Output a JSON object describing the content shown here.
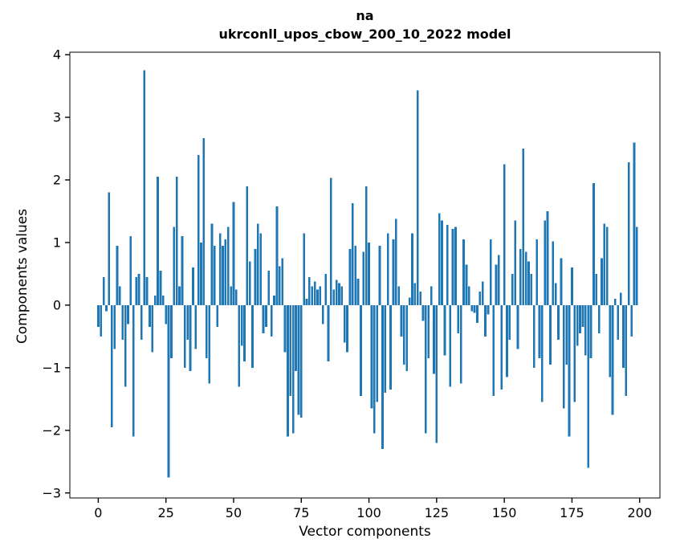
{
  "figure": {
    "title_line1": "na",
    "title_line2": "ukrconll_upos_cbow_200_10_2022 model"
  },
  "chart_data": {
    "type": "bar",
    "title": "na\nukrconll_upos_cbow_200_10_2022 model",
    "xlabel": "Vector components",
    "ylabel": "Components values",
    "x_note": "x value = component index (0..199)",
    "bar_color": "#1f77b4",
    "grid": false,
    "legend": "none",
    "xlim": [
      -10.5,
      207.5
    ],
    "ylim": [
      -3.08,
      4.04
    ],
    "x_ticks": [
      0,
      25,
      50,
      75,
      100,
      125,
      150,
      175,
      200
    ],
    "y_ticks": [
      -3,
      -2,
      -1,
      0,
      1,
      2,
      3,
      4
    ],
    "values": [
      -0.35,
      -0.5,
      0.45,
      -0.1,
      1.8,
      -1.95,
      -0.7,
      0.95,
      0.3,
      -0.55,
      -1.3,
      -0.3,
      1.1,
      -2.1,
      0.45,
      0.5,
      -0.55,
      3.75,
      0.45,
      -0.35,
      -0.75,
      0.15,
      2.05,
      0.55,
      0.15,
      -0.3,
      -2.75,
      -0.85,
      1.25,
      2.05,
      0.3,
      1.1,
      -1.0,
      -0.55,
      -1.05,
      0.6,
      -0.7,
      2.4,
      1.0,
      2.67,
      -0.85,
      -1.25,
      1.3,
      0.95,
      -0.35,
      1.15,
      0.95,
      1.05,
      1.25,
      0.3,
      1.65,
      0.25,
      -1.3,
      -0.65,
      -0.9,
      1.9,
      0.7,
      -1.0,
      0.9,
      1.3,
      1.15,
      -0.45,
      -0.35,
      0.55,
      -0.5,
      0.15,
      1.58,
      0.62,
      0.75,
      -0.75,
      -2.1,
      -1.45,
      -2.05,
      -1.05,
      -1.75,
      -1.8,
      1.15,
      0.1,
      0.45,
      0.3,
      0.38,
      0.25,
      0.3,
      -0.3,
      0.5,
      -0.9,
      2.03,
      0.25,
      0.4,
      0.35,
      0.3,
      -0.6,
      -0.75,
      0.9,
      1.63,
      0.95,
      0.42,
      -1.45,
      0.85,
      1.9,
      1.0,
      -1.65,
      -2.05,
      -1.55,
      0.95,
      -2.3,
      -1.4,
      1.15,
      -1.35,
      1.05,
      1.38,
      0.3,
      -0.5,
      -0.95,
      -1.05,
      0.12,
      1.15,
      0.35,
      3.43,
      0.22,
      -0.25,
      -2.05,
      -0.85,
      0.3,
      -1.1,
      -2.2,
      1.47,
      1.35,
      -0.8,
      1.28,
      -1.3,
      1.22,
      1.25,
      -0.45,
      -1.25,
      1.05,
      0.65,
      0.3,
      -0.1,
      -0.12,
      -0.28,
      0.22,
      0.38,
      -0.5,
      -0.15,
      1.05,
      -1.45,
      0.65,
      0.8,
      -1.35,
      2.25,
      -1.15,
      -0.55,
      0.5,
      1.35,
      -0.7,
      0.9,
      2.5,
      0.85,
      0.7,
      0.5,
      -1.0,
      1.05,
      -0.85,
      -1.55,
      1.35,
      1.5,
      -0.95,
      1.02,
      0.35,
      -0.55,
      0.75,
      -1.65,
      -0.95,
      -2.1,
      0.6,
      -1.55,
      -0.65,
      -0.45,
      -0.35,
      -0.8,
      -2.6,
      -0.85,
      1.95,
      0.5,
      -0.45,
      0.75,
      1.3,
      1.25,
      -1.15,
      -1.75,
      0.1,
      -0.55,
      0.2,
      -1.0,
      -1.45,
      2.28,
      -0.5,
      2.6,
      1.25
    ]
  }
}
